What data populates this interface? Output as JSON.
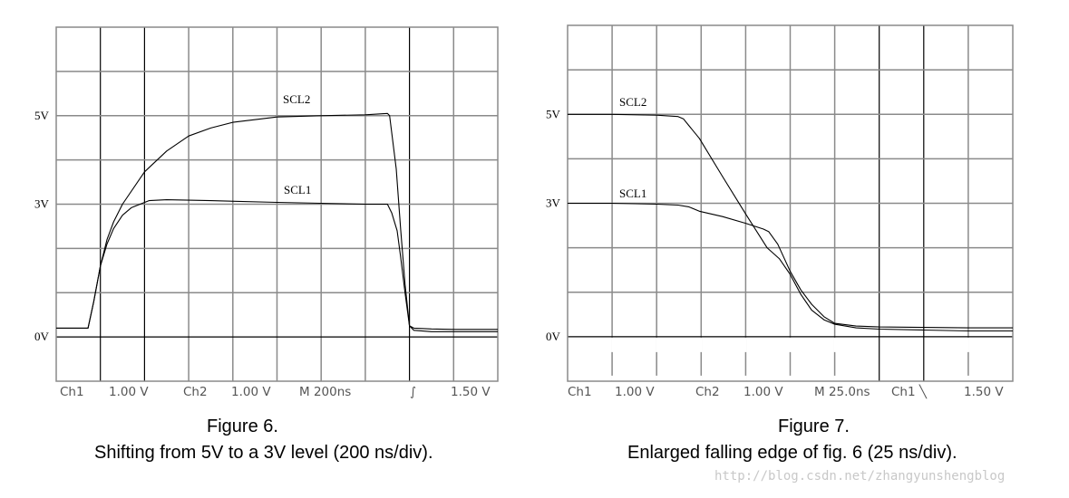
{
  "chart_data": [
    {
      "type": "line",
      "title": "Figure 6.",
      "subtitle": "Shifting from 5V to a 3V level (200 ns/div).",
      "xlabel": "",
      "ylabel": "",
      "x_unit": "ns",
      "xlim": [
        0,
        2000
      ],
      "ylim": [
        -1,
        7
      ],
      "grid": true,
      "y_tick_labels": [
        {
          "value": 5,
          "label": "5V"
        },
        {
          "value": 3,
          "label": "3V"
        },
        {
          "value": 0,
          "label": "0V"
        }
      ],
      "scope_readout": [
        "Ch1",
        "1.00 V",
        "Ch2",
        "1.00 V",
        "M  200ns",
        "∫",
        "1.50 V"
      ],
      "series": [
        {
          "name": "SCL2",
          "color": "#000000",
          "x": [
            0,
            144,
            170,
            200,
            230,
            260,
            300,
            400,
            500,
            600,
            700,
            800,
            1000,
            1200,
            1400,
            1500,
            1510,
            1540,
            1560,
            1580,
            1600,
            1620,
            1700,
            1800,
            2000
          ],
          "y": [
            0.2,
            0.2,
            0.8,
            1.6,
            2.2,
            2.6,
            3.0,
            3.73,
            4.2,
            4.54,
            4.72,
            4.85,
            4.97,
            5.0,
            5.02,
            5.05,
            5.0,
            3.8,
            2.43,
            1.2,
            0.25,
            0.2,
            0.18,
            0.17,
            0.17
          ]
        },
        {
          "name": "SCL1",
          "color": "#000000",
          "x": [
            0,
            144,
            170,
            200,
            230,
            260,
            300,
            340,
            380,
            420,
            500,
            700,
            1000,
            1200,
            1400,
            1500,
            1520,
            1544,
            1560,
            1580,
            1600,
            1620,
            1700,
            1800,
            2000
          ],
          "y": [
            0.2,
            0.2,
            0.8,
            1.6,
            2.1,
            2.45,
            2.75,
            2.92,
            3.0,
            3.08,
            3.1,
            3.08,
            3.04,
            3.02,
            3.0,
            3.0,
            2.8,
            2.4,
            1.8,
            1.0,
            0.25,
            0.15,
            0.12,
            0.12,
            0.12
          ]
        }
      ]
    },
    {
      "type": "line",
      "title": "Figure 7.",
      "subtitle": "Enlarged falling edge of fig. 6 (25 ns/div).",
      "xlabel": "",
      "ylabel": "",
      "x_unit": "ns",
      "xlim": [
        0,
        250
      ],
      "ylim": [
        -1,
        7
      ],
      "grid": true,
      "y_tick_labels": [
        {
          "value": 5,
          "label": "5V"
        },
        {
          "value": 3,
          "label": "3V"
        },
        {
          "value": 0,
          "label": "0V"
        }
      ],
      "scope_readout": [
        "Ch1",
        "1.00 V",
        "Ch2",
        "1.00 V",
        "M 25.0ns",
        "Ch1 ╲",
        "1.50 V"
      ],
      "series": [
        {
          "name": "SCL2",
          "color": "#000000",
          "x": [
            0,
            25,
            50,
            62,
            65,
            68,
            74,
            87,
            100,
            112,
            119,
            125,
            131,
            137,
            144,
            150,
            162,
            175,
            200,
            225,
            250
          ],
          "y": [
            5.0,
            5.0,
            4.98,
            4.95,
            4.9,
            4.75,
            4.46,
            3.6,
            2.76,
            2.0,
            1.75,
            1.4,
            0.95,
            0.6,
            0.38,
            0.28,
            0.2,
            0.17,
            0.15,
            0.13,
            0.13
          ]
        },
        {
          "name": "SCL1",
          "color": "#000000",
          "x": [
            0,
            25,
            50,
            62,
            68,
            74,
            87,
            100,
            110,
            113,
            118,
            125,
            131,
            137,
            144,
            150,
            162,
            175,
            200,
            225,
            250
          ],
          "y": [
            3.0,
            3.0,
            2.98,
            2.96,
            2.92,
            2.82,
            2.7,
            2.55,
            2.42,
            2.36,
            2.08,
            1.47,
            1.05,
            0.73,
            0.45,
            0.3,
            0.24,
            0.22,
            0.21,
            0.2,
            0.2
          ]
        }
      ]
    }
  ],
  "watermark": "http://blog.csdn.net/zhangyunshengblog"
}
